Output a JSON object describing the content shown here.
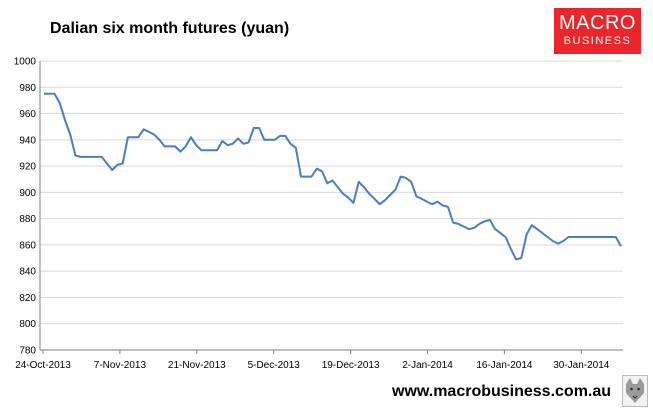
{
  "header": {
    "title": "Dalian six month futures (yuan)"
  },
  "logo": {
    "line1": "MACRO",
    "line2": "BUSINESS"
  },
  "footer": {
    "url": "www.macrobusiness.com.au"
  },
  "colors": {
    "line": "#4a7ebf",
    "logo_bg": "#e8262b",
    "grid": "#d9d9d9",
    "axis": "#7f7f7f"
  },
  "chart_data": {
    "type": "line",
    "title": "Dalian six month futures (yuan)",
    "xlabel": "",
    "ylabel": "",
    "ylim": [
      780,
      1000
    ],
    "yticks": [
      780,
      800,
      820,
      840,
      860,
      880,
      900,
      920,
      940,
      960,
      980,
      1000
    ],
    "x_tick_labels": [
      "24-Oct-2013",
      "7-Nov-2013",
      "21-Nov-2013",
      "5-Dec-2013",
      "19-Dec-2013",
      "2-Jan-2014",
      "16-Jan-2014",
      "30-Jan-2014"
    ],
    "grid": "horizontal",
    "legend": "none",
    "series": [
      {
        "values": [
          975,
          975,
          975,
          968,
          955,
          944,
          928,
          927,
          927,
          927,
          927,
          927,
          922,
          917,
          921,
          922,
          942,
          942,
          942,
          948,
          946,
          944,
          940,
          935,
          935,
          935,
          931,
          935,
          942,
          936,
          932,
          932,
          932,
          932,
          939,
          936,
          937,
          941,
          937,
          938,
          949,
          949,
          940,
          940,
          940,
          943,
          943,
          937,
          934,
          912,
          912,
          912,
          918,
          916,
          907,
          909,
          904,
          899,
          896,
          892,
          908,
          904,
          899,
          895,
          891,
          894,
          898,
          902,
          912,
          911,
          908,
          897,
          895,
          893,
          891,
          893,
          890,
          889,
          877,
          876,
          874,
          872,
          873,
          876,
          878,
          879,
          872,
          869,
          866,
          857,
          849,
          850,
          868,
          875,
          872,
          869,
          866,
          863,
          861,
          863,
          866,
          866,
          866,
          866,
          866,
          866,
          866,
          866,
          866,
          866,
          859
        ]
      }
    ]
  }
}
